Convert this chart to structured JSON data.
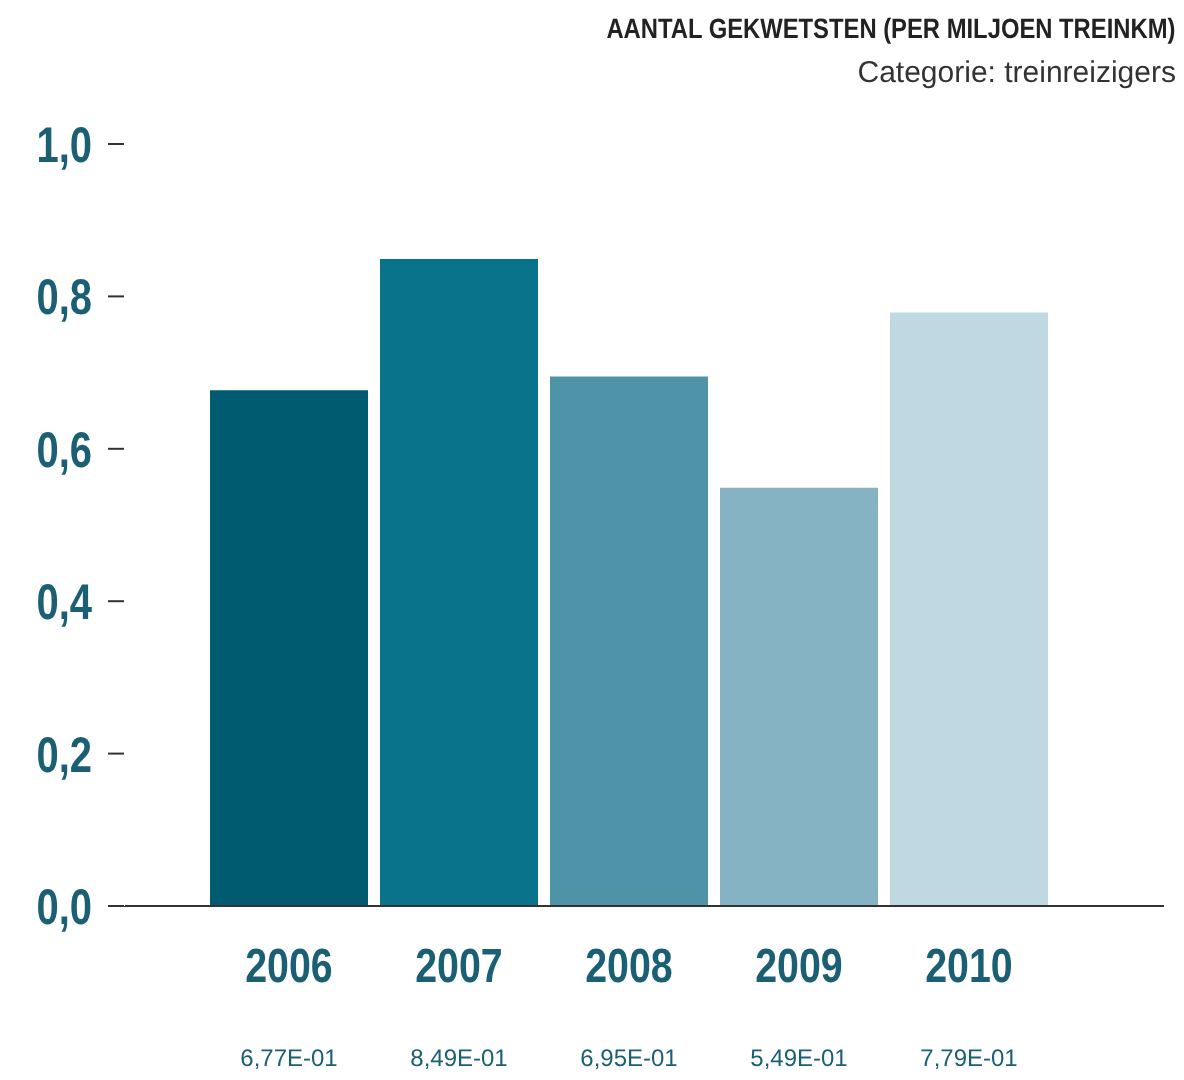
{
  "chart_data": {
    "type": "bar",
    "title": "AANTAL GEKWETSTEN (PER MILJOEN TREINKM)",
    "subtitle": "Categorie: treinreizigers",
    "categories": [
      "2006",
      "2007",
      "2008",
      "2009",
      "2010"
    ],
    "values": [
      0.677,
      0.849,
      0.695,
      0.549,
      0.779
    ],
    "colors": [
      "#005a70",
      "#0a738c",
      "#4f93a8",
      "#86b3c4",
      "#bfd8e1"
    ],
    "annotations": [
      "6,77E-01",
      "8,49E-01",
      "6,95E-01",
      "5,49E-01",
      "7,79E-01"
    ],
    "ylim": [
      0,
      1
    ],
    "yticks": [
      {
        "value": 0,
        "label": "0,0"
      },
      {
        "value": 0.2,
        "label": "0,2"
      },
      {
        "value": 0.4,
        "label": "0,4"
      },
      {
        "value": 0.6,
        "label": "0,6"
      },
      {
        "value": 0.8,
        "label": "0,8"
      },
      {
        "value": 1,
        "label": "1,0"
      }
    ],
    "grid": false,
    "legend": false
  }
}
